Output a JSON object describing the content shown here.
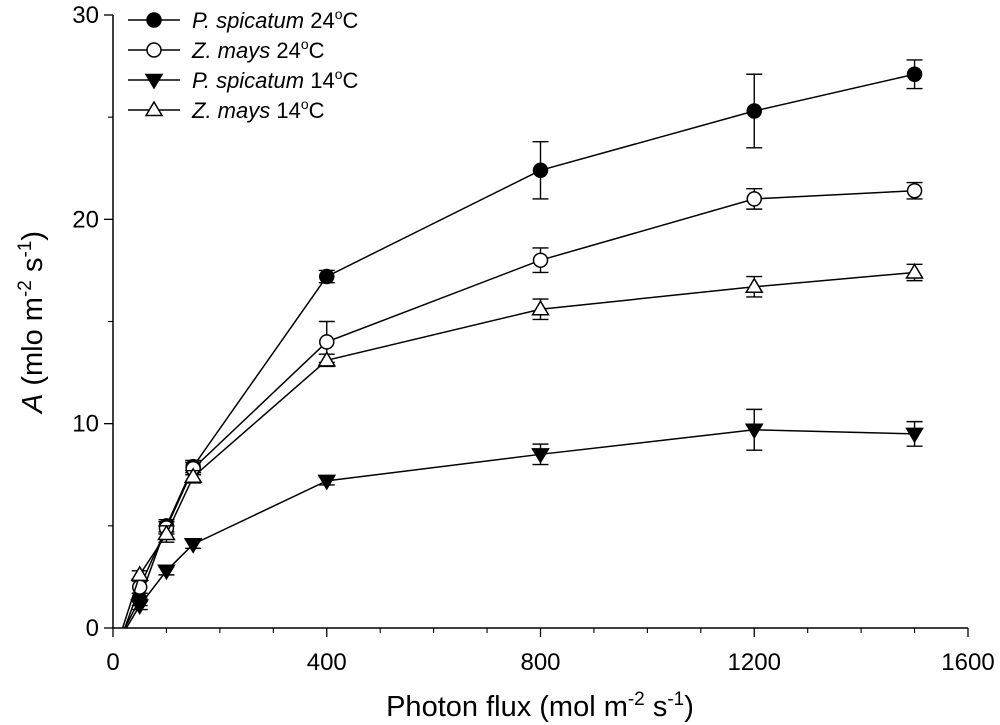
{
  "chart_data": {
    "type": "line",
    "xlabel": "Photon flux (mol m-2 s-1)",
    "ylabel": "A (mlo m-2 s-1)",
    "xlabel_parts": {
      "pre": "Photon flux (mol m",
      "sup1": "-2",
      "mid": " s",
      "sup2": "-1",
      "post": ")"
    },
    "ylabel_parts": {
      "italic": "A",
      "pre": " (mlo m",
      "sup1": "-2",
      "mid": " s",
      "sup2": "-1",
      "post": ")"
    },
    "xlim": [
      0,
      1600
    ],
    "ylim": [
      0,
      30
    ],
    "xticks": [
      0,
      400,
      800,
      1200,
      1600
    ],
    "yticks": [
      0,
      10,
      20,
      30
    ],
    "x_minor_step": 100,
    "y_minor_step": 5,
    "grid": false,
    "legend_position": "top-left",
    "series": [
      {
        "name": "P. spicatum 24°C",
        "legend": {
          "species": "P. spicatum",
          "temp": "24",
          "deg": "o",
          "unit": "C"
        },
        "marker": "circle-filled",
        "x": [
          22,
          50,
          100,
          150,
          400,
          800,
          1200,
          1500
        ],
        "y": [
          0,
          1.4,
          5.0,
          7.9,
          17.2,
          22.4,
          25.3,
          27.1
        ],
        "err": [
          0,
          0.3,
          0.3,
          0.3,
          0.3,
          1.4,
          1.8,
          0.7
        ]
      },
      {
        "name": "Z. mays 24°C",
        "legend": {
          "species": "Z. mays",
          "temp": "24",
          "deg": "o",
          "unit": "C"
        },
        "marker": "circle-open",
        "x": [
          22,
          50,
          100,
          150,
          400,
          800,
          1200,
          1500
        ],
        "y": [
          0,
          2.0,
          4.9,
          7.8,
          14.0,
          18.0,
          21.0,
          21.4
        ],
        "err": [
          0,
          0.3,
          0.3,
          0.3,
          1.0,
          0.6,
          0.5,
          0.4
        ]
      },
      {
        "name": "P. spicatum 14°C",
        "legend": {
          "species": "P. spicatum",
          "temp": "14",
          "deg": "o",
          "unit": "C"
        },
        "marker": "triangle-down-filled",
        "x": [
          25,
          50,
          100,
          150,
          400,
          800,
          1200,
          1500
        ],
        "y": [
          0,
          1.1,
          2.8,
          4.1,
          7.2,
          8.5,
          9.7,
          9.5
        ],
        "err": [
          0,
          0.2,
          0.2,
          0.2,
          0.2,
          0.5,
          1.0,
          0.6
        ]
      },
      {
        "name": "Z. mays 14°C",
        "legend": {
          "species": "Z. mays",
          "temp": "14",
          "deg": "o",
          "unit": "C"
        },
        "marker": "triangle-up-open",
        "x": [
          18,
          50,
          100,
          150,
          400,
          800,
          1200,
          1500
        ],
        "y": [
          0,
          2.6,
          4.6,
          7.4,
          13.1,
          15.6,
          16.7,
          17.4
        ],
        "err": [
          0,
          0.2,
          0.4,
          0.3,
          0.3,
          0.5,
          0.5,
          0.4
        ]
      }
    ]
  }
}
